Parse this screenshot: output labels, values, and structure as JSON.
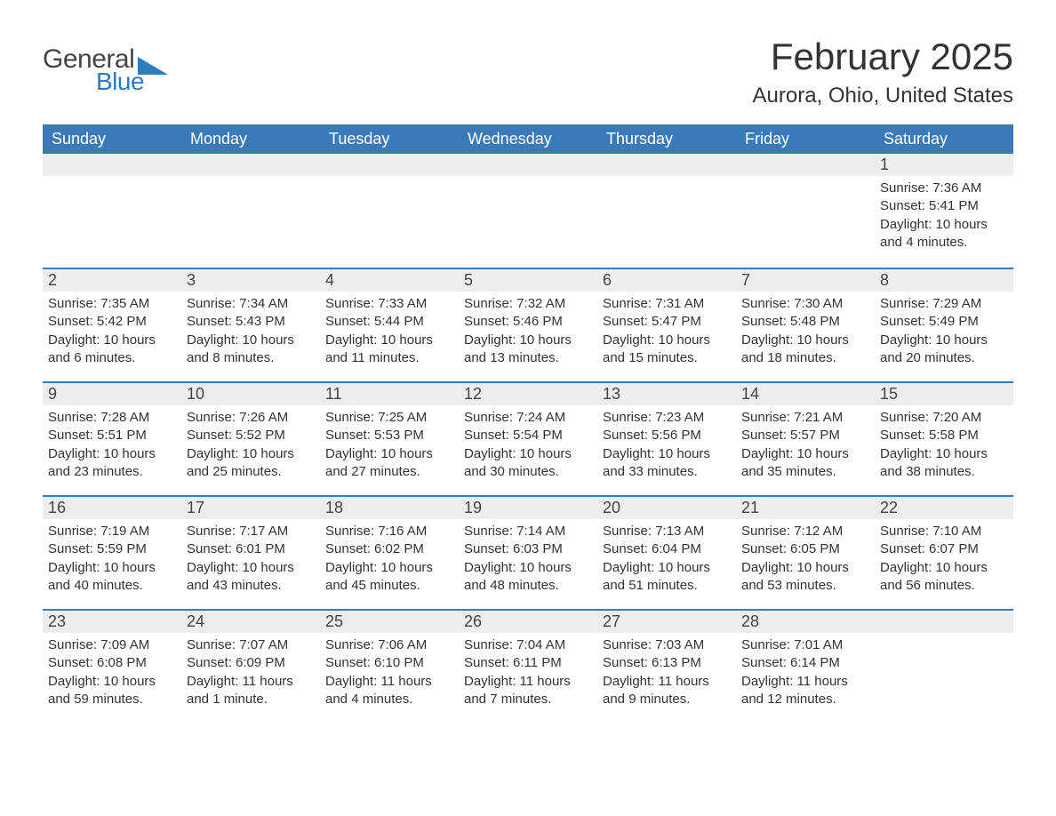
{
  "logo": {
    "word1": "General",
    "word2": "Blue",
    "icon_color": "#2e7bbf",
    "text_color_general": "#444444",
    "text_color_blue": "#2e7bbf"
  },
  "header": {
    "month_title": "February 2025",
    "location": "Aurora, Ohio, United States"
  },
  "colors": {
    "header_bg": "#3a7ab8",
    "header_text": "#ffffff",
    "daynum_bg": "#ededed",
    "row_divider": "#3a7ab8",
    "body_text": "#333333",
    "page_bg": "#ffffff"
  },
  "typography": {
    "month_title_size": 42,
    "location_size": 24,
    "weekday_size": 18,
    "daynum_size": 18,
    "body_size": 15,
    "font_family": "Arial"
  },
  "weekdays": [
    "Sunday",
    "Monday",
    "Tuesday",
    "Wednesday",
    "Thursday",
    "Friday",
    "Saturday"
  ],
  "calendar": {
    "start_weekday_index": 6,
    "days": [
      {
        "n": 1,
        "sunrise": "7:36 AM",
        "sunset": "5:41 PM",
        "daylight": "10 hours and 4 minutes."
      },
      {
        "n": 2,
        "sunrise": "7:35 AM",
        "sunset": "5:42 PM",
        "daylight": "10 hours and 6 minutes."
      },
      {
        "n": 3,
        "sunrise": "7:34 AM",
        "sunset": "5:43 PM",
        "daylight": "10 hours and 8 minutes."
      },
      {
        "n": 4,
        "sunrise": "7:33 AM",
        "sunset": "5:44 PM",
        "daylight": "10 hours and 11 minutes."
      },
      {
        "n": 5,
        "sunrise": "7:32 AM",
        "sunset": "5:46 PM",
        "daylight": "10 hours and 13 minutes."
      },
      {
        "n": 6,
        "sunrise": "7:31 AM",
        "sunset": "5:47 PM",
        "daylight": "10 hours and 15 minutes."
      },
      {
        "n": 7,
        "sunrise": "7:30 AM",
        "sunset": "5:48 PM",
        "daylight": "10 hours and 18 minutes."
      },
      {
        "n": 8,
        "sunrise": "7:29 AM",
        "sunset": "5:49 PM",
        "daylight": "10 hours and 20 minutes."
      },
      {
        "n": 9,
        "sunrise": "7:28 AM",
        "sunset": "5:51 PM",
        "daylight": "10 hours and 23 minutes."
      },
      {
        "n": 10,
        "sunrise": "7:26 AM",
        "sunset": "5:52 PM",
        "daylight": "10 hours and 25 minutes."
      },
      {
        "n": 11,
        "sunrise": "7:25 AM",
        "sunset": "5:53 PM",
        "daylight": "10 hours and 27 minutes."
      },
      {
        "n": 12,
        "sunrise": "7:24 AM",
        "sunset": "5:54 PM",
        "daylight": "10 hours and 30 minutes."
      },
      {
        "n": 13,
        "sunrise": "7:23 AM",
        "sunset": "5:56 PM",
        "daylight": "10 hours and 33 minutes."
      },
      {
        "n": 14,
        "sunrise": "7:21 AM",
        "sunset": "5:57 PM",
        "daylight": "10 hours and 35 minutes."
      },
      {
        "n": 15,
        "sunrise": "7:20 AM",
        "sunset": "5:58 PM",
        "daylight": "10 hours and 38 minutes."
      },
      {
        "n": 16,
        "sunrise": "7:19 AM",
        "sunset": "5:59 PM",
        "daylight": "10 hours and 40 minutes."
      },
      {
        "n": 17,
        "sunrise": "7:17 AM",
        "sunset": "6:01 PM",
        "daylight": "10 hours and 43 minutes."
      },
      {
        "n": 18,
        "sunrise": "7:16 AM",
        "sunset": "6:02 PM",
        "daylight": "10 hours and 45 minutes."
      },
      {
        "n": 19,
        "sunrise": "7:14 AM",
        "sunset": "6:03 PM",
        "daylight": "10 hours and 48 minutes."
      },
      {
        "n": 20,
        "sunrise": "7:13 AM",
        "sunset": "6:04 PM",
        "daylight": "10 hours and 51 minutes."
      },
      {
        "n": 21,
        "sunrise": "7:12 AM",
        "sunset": "6:05 PM",
        "daylight": "10 hours and 53 minutes."
      },
      {
        "n": 22,
        "sunrise": "7:10 AM",
        "sunset": "6:07 PM",
        "daylight": "10 hours and 56 minutes."
      },
      {
        "n": 23,
        "sunrise": "7:09 AM",
        "sunset": "6:08 PM",
        "daylight": "10 hours and 59 minutes."
      },
      {
        "n": 24,
        "sunrise": "7:07 AM",
        "sunset": "6:09 PM",
        "daylight": "11 hours and 1 minute."
      },
      {
        "n": 25,
        "sunrise": "7:06 AM",
        "sunset": "6:10 PM",
        "daylight": "11 hours and 4 minutes."
      },
      {
        "n": 26,
        "sunrise": "7:04 AM",
        "sunset": "6:11 PM",
        "daylight": "11 hours and 7 minutes."
      },
      {
        "n": 27,
        "sunrise": "7:03 AM",
        "sunset": "6:13 PM",
        "daylight": "11 hours and 9 minutes."
      },
      {
        "n": 28,
        "sunrise": "7:01 AM",
        "sunset": "6:14 PM",
        "daylight": "11 hours and 12 minutes."
      }
    ]
  },
  "labels": {
    "sunrise_prefix": "Sunrise: ",
    "sunset_prefix": "Sunset: ",
    "daylight_prefix": "Daylight: "
  }
}
